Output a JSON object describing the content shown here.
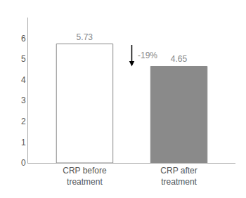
{
  "chart_data": {
    "type": "bar",
    "categories": [
      "CRP before\ntreatment",
      "CRP after\ntreatment"
    ],
    "values": [
      5.73,
      4.65
    ],
    "colors": [
      "#ffffff",
      "#8a8a8a"
    ],
    "data_labels": true,
    "annotations": [
      "-19%"
    ],
    "ylim": [
      0,
      7
    ],
    "yticks": [
      0,
      1,
      2,
      3,
      4,
      5,
      6
    ],
    "grid": false
  }
}
